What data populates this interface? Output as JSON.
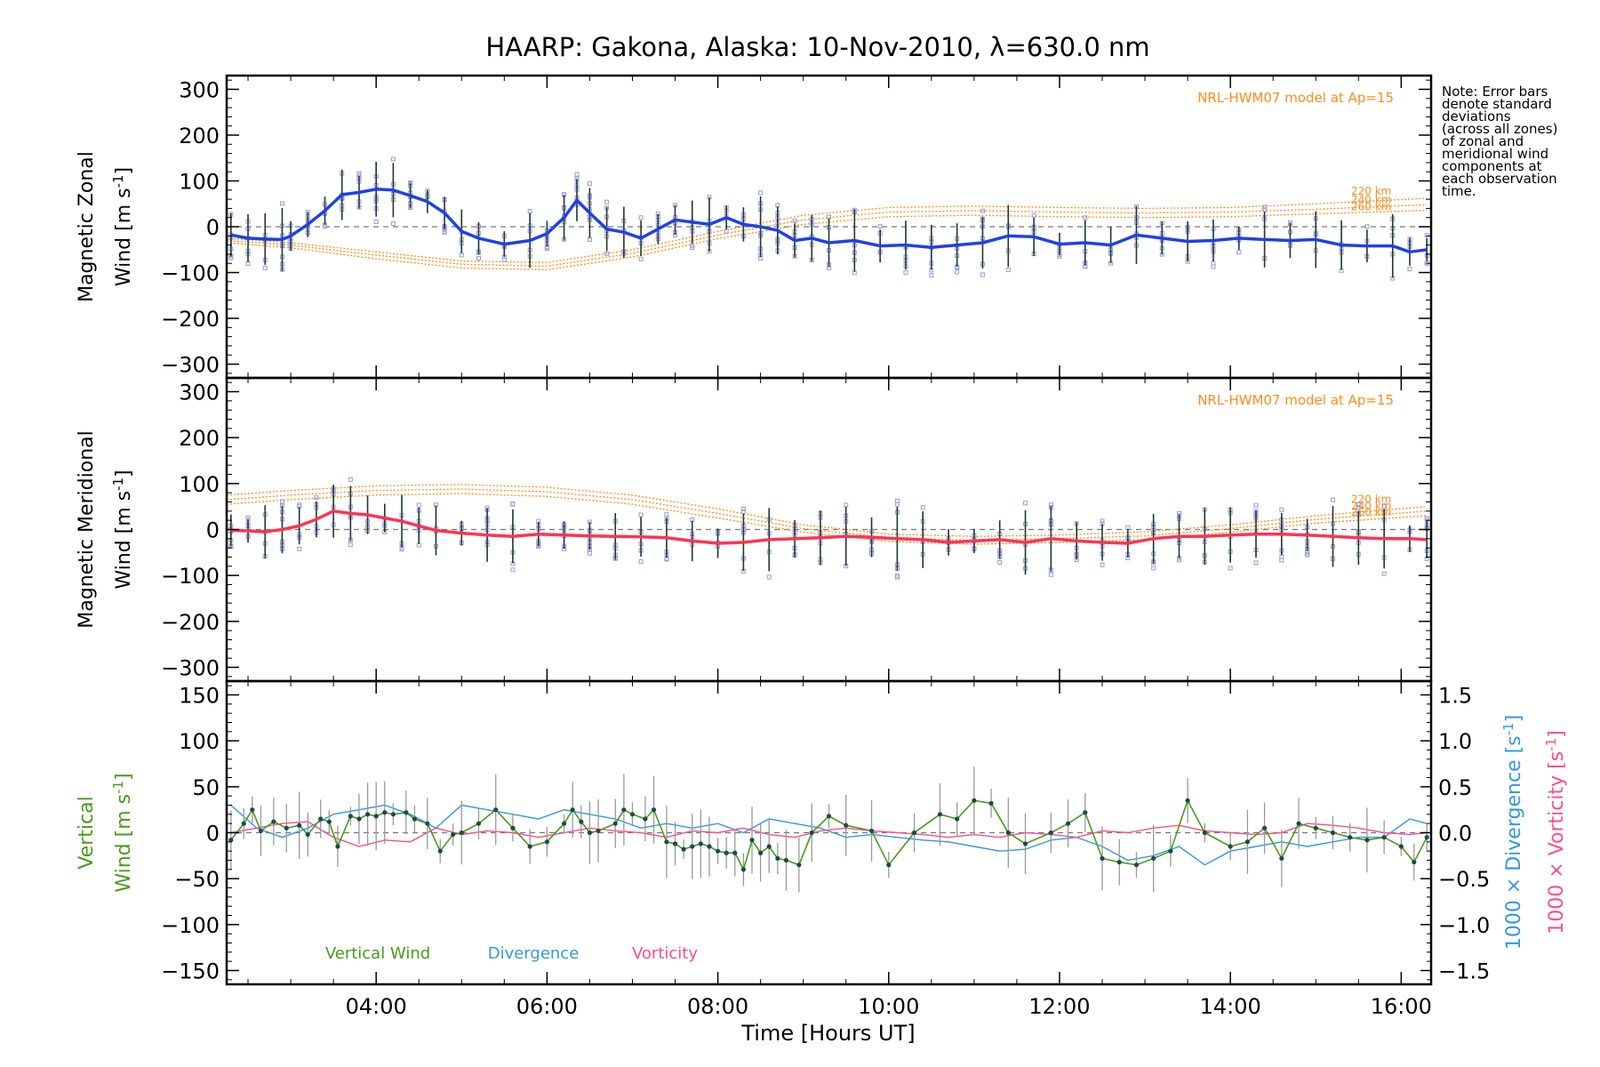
{
  "title": "HAARP: Gakona,  Alaska: 10-Nov-2010, λ=630.0 nm",
  "note": [
    "Note: Error bars",
    "denote standard",
    "deviations",
    "(across all zones)",
    "of zonal and",
    "meridional wind",
    "components at",
    "each observation",
    "time."
  ],
  "xlabel": "Time [Hours UT]",
  "colors": {
    "zonal": "#2040e8",
    "meridional": "#ff3355",
    "vertical": "#4a9a1c",
    "divergence": "#3399dd",
    "vorticity": "#ff4d8a",
    "model": "#ff8c1a",
    "zone_points": "#9999dd",
    "error_bar": "#1a3a2a"
  },
  "chart_data": [
    {
      "type": "line",
      "panel": "zonal",
      "ylabel_line1": "Magnetic Zonal",
      "ylabel_line2_prefix": "Wind [m s",
      "ylabel_sup": "-1",
      "ylabel_suffix": "]",
      "ylim": [
        -330,
        330
      ],
      "yticks": [
        300,
        200,
        100,
        0,
        -100,
        -200,
        -300
      ],
      "xlim": [
        2.25,
        16.35
      ],
      "xticks": [
        4,
        6,
        8,
        10,
        12,
        14,
        16
      ],
      "xticklabels": [
        "04:00",
        "06:00",
        "08:00",
        "10:00",
        "12:00",
        "14:00",
        "16:00"
      ],
      "model_label": "NRL-HWM07 model at Ap=15",
      "model_altitudes": [
        "220 km",
        "240 km",
        "260 km"
      ],
      "series": [
        {
          "x": [
            2.3,
            2.5,
            2.7,
            2.9,
            3.0,
            3.2,
            3.4,
            3.6,
            3.8,
            4.0,
            4.2,
            4.4,
            4.6,
            4.8,
            5.0,
            5.2,
            5.5,
            5.8,
            6.0,
            6.2,
            6.35,
            6.5,
            6.7,
            6.9,
            7.1,
            7.3,
            7.5,
            7.7,
            7.9,
            8.1,
            8.3,
            8.5,
            8.7,
            8.9,
            9.1,
            9.3,
            9.6,
            9.9,
            10.2,
            10.5,
            10.8,
            11.1,
            11.4,
            11.7,
            12.0,
            12.3,
            12.6,
            12.9,
            13.2,
            13.5,
            13.8,
            14.1,
            14.4,
            14.7,
            15.0,
            15.3,
            15.6,
            15.9,
            16.1,
            16.3
          ],
          "values": [
            -18,
            -25,
            -27,
            -28,
            -20,
            5,
            35,
            70,
            75,
            82,
            80,
            68,
            55,
            30,
            -10,
            -25,
            -38,
            -30,
            -15,
            20,
            58,
            30,
            -5,
            -12,
            -25,
            -5,
            15,
            10,
            5,
            20,
            5,
            0,
            -8,
            -30,
            -25,
            -35,
            -30,
            -42,
            -40,
            -45,
            -40,
            -35,
            -20,
            -22,
            -38,
            -35,
            -40,
            -18,
            -25,
            -32,
            -30,
            -25,
            -28,
            -30,
            -28,
            -40,
            -42,
            -42,
            -55,
            -50
          ]
        }
      ],
      "model": {
        "x": [
          2.25,
          3.0,
          4.0,
          5.0,
          6.0,
          7.0,
          8.0,
          9.0,
          10.0,
          11.0,
          12.0,
          13.0,
          14.0,
          15.0,
          16.3
        ],
        "curves": [
          [
            -25,
            -35,
            -55,
            -75,
            -78,
            -50,
            -10,
            25,
            42,
            45,
            42,
            40,
            42,
            50,
            62
          ],
          [
            -30,
            -40,
            -62,
            -82,
            -86,
            -58,
            -18,
            15,
            32,
            35,
            32,
            30,
            32,
            38,
            48
          ],
          [
            -35,
            -46,
            -70,
            -90,
            -94,
            -66,
            -26,
            5,
            22,
            25,
            22,
            20,
            22,
            28,
            36
          ]
        ]
      }
    },
    {
      "type": "line",
      "panel": "meridional",
      "ylabel_line1": "Magnetic Meridional",
      "ylabel_line2_prefix": "Wind [m s",
      "ylabel_sup": "-1",
      "ylabel_suffix": "]",
      "ylim": [
        -330,
        330
      ],
      "yticks": [
        300,
        200,
        100,
        0,
        -100,
        -200,
        -300
      ],
      "xlim": [
        2.25,
        16.35
      ],
      "xticks": [
        4,
        6,
        8,
        10,
        12,
        14,
        16
      ],
      "model_label": "NRL-HWM07 model at Ap=15",
      "model_altitudes": [
        "220 km",
        "240 km",
        "260 km"
      ],
      "series": [
        {
          "x": [
            2.3,
            2.5,
            2.7,
            2.9,
            3.1,
            3.3,
            3.5,
            3.7,
            3.9,
            4.1,
            4.3,
            4.5,
            4.7,
            5.0,
            5.3,
            5.6,
            5.9,
            6.2,
            6.5,
            6.8,
            7.1,
            7.4,
            7.7,
            8.0,
            8.3,
            8.6,
            8.9,
            9.2,
            9.5,
            9.8,
            10.1,
            10.4,
            10.7,
            11.0,
            11.3,
            11.6,
            11.9,
            12.2,
            12.5,
            12.8,
            13.1,
            13.4,
            13.7,
            14.0,
            14.3,
            14.6,
            14.9,
            15.2,
            15.5,
            15.8,
            16.1,
            16.3
          ],
          "values": [
            -2,
            -3,
            -5,
            0,
            8,
            22,
            40,
            35,
            32,
            25,
            18,
            8,
            -2,
            -8,
            -12,
            -15,
            -10,
            -12,
            -14,
            -15,
            -16,
            -18,
            -25,
            -30,
            -28,
            -22,
            -20,
            -18,
            -15,
            -17,
            -20,
            -22,
            -28,
            -25,
            -22,
            -28,
            -20,
            -25,
            -28,
            -30,
            -20,
            -15,
            -15,
            -12,
            -10,
            -10,
            -12,
            -15,
            -18,
            -20,
            -20,
            -22
          ]
        }
      ],
      "model": {
        "x": [
          2.25,
          3.0,
          4.0,
          5.0,
          6.0,
          7.0,
          8.0,
          9.0,
          10.0,
          11.0,
          12.0,
          13.0,
          14.0,
          15.0,
          16.3
        ],
        "curves": [
          [
            75,
            85,
            95,
            98,
            92,
            75,
            45,
            10,
            -10,
            -15,
            -12,
            -5,
            10,
            30,
            50
          ],
          [
            65,
            75,
            85,
            88,
            82,
            65,
            35,
            2,
            -18,
            -24,
            -20,
            -14,
            2,
            22,
            40
          ],
          [
            55,
            65,
            75,
            78,
            72,
            55,
            25,
            -6,
            -26,
            -32,
            -28,
            -22,
            -6,
            14,
            30
          ]
        ]
      }
    },
    {
      "type": "line",
      "panel": "vertical",
      "ylabel_left_line1": "Vertical",
      "ylabel_left_line2_prefix": "Wind [m s",
      "ylabel_sup": "-1",
      "ylabel_suffix": "]",
      "ylabel_right_div_prefix": "1000 × Divergence [s",
      "ylabel_right_vor_prefix": "1000 × Vorticity [s",
      "ylim": [
        -165,
        165
      ],
      "yticks": [
        150,
        100,
        50,
        0,
        -50,
        -100,
        -150
      ],
      "ylim_right": [
        -1.65,
        1.65
      ],
      "yticks_right": [
        1.5,
        1.0,
        0.5,
        0.0,
        -0.5,
        -1.0,
        -1.5
      ],
      "yticklabels_right": [
        "1.5",
        "1.0",
        "0.5",
        "0.0",
        "−0.5",
        "−1.0",
        "−1.5"
      ],
      "xlim": [
        2.25,
        16.35
      ],
      "xticks": [
        4,
        6,
        8,
        10,
        12,
        14,
        16
      ],
      "legend": [
        "Vertical Wind",
        "Divergence",
        "Vorticity"
      ],
      "series": [
        {
          "name": "Vertical Wind",
          "x": [
            2.3,
            2.45,
            2.55,
            2.65,
            2.8,
            2.95,
            3.1,
            3.2,
            3.35,
            3.45,
            3.55,
            3.7,
            3.8,
            3.9,
            4.0,
            4.1,
            4.2,
            4.35,
            4.45,
            4.6,
            4.75,
            4.9,
            5.0,
            5.2,
            5.4,
            5.6,
            5.8,
            6.0,
            6.2,
            6.3,
            6.4,
            6.5,
            6.6,
            6.8,
            6.9,
            7.0,
            7.15,
            7.25,
            7.4,
            7.5,
            7.6,
            7.7,
            7.8,
            7.9,
            8.0,
            8.1,
            8.2,
            8.3,
            8.4,
            8.5,
            8.6,
            8.7,
            8.8,
            8.95,
            9.1,
            9.3,
            9.5,
            9.8,
            10.0,
            10.3,
            10.6,
            10.8,
            11.0,
            11.2,
            11.4,
            11.6,
            11.9,
            12.1,
            12.3,
            12.5,
            12.7,
            12.9,
            13.1,
            13.3,
            13.5,
            13.7,
            14.0,
            14.2,
            14.4,
            14.6,
            14.8,
            15.0,
            15.2,
            15.4,
            15.6,
            15.8,
            16.0,
            16.15,
            16.3
          ],
          "values": [
            -8,
            10,
            25,
            2,
            12,
            5,
            8,
            -2,
            15,
            12,
            -15,
            18,
            15,
            20,
            18,
            22,
            20,
            22,
            15,
            10,
            -20,
            -2,
            0,
            10,
            25,
            5,
            -15,
            -10,
            10,
            25,
            12,
            0,
            2,
            10,
            25,
            20,
            15,
            25,
            -10,
            -12,
            -18,
            -15,
            -12,
            -15,
            -20,
            -22,
            -22,
            -40,
            -8,
            -22,
            -15,
            -28,
            -30,
            -35,
            0,
            18,
            8,
            2,
            -35,
            0,
            20,
            15,
            35,
            32,
            0,
            -12,
            0,
            10,
            22,
            -28,
            -32,
            -35,
            -28,
            -20,
            35,
            0,
            -15,
            -10,
            5,
            -28,
            10,
            5,
            0,
            -5,
            -8,
            -5,
            -15,
            -32,
            -5
          ]
        },
        {
          "name": "Divergence",
          "x": [
            2.3,
            2.6,
            2.9,
            3.2,
            3.5,
            3.8,
            4.1,
            4.4,
            4.7,
            5.0,
            5.3,
            5.6,
            5.9,
            6.2,
            6.5,
            6.8,
            7.1,
            7.4,
            7.7,
            8.0,
            8.3,
            8.6,
            8.9,
            9.2,
            9.5,
            9.8,
            10.1,
            10.4,
            10.7,
            11.0,
            11.3,
            11.6,
            11.9,
            12.2,
            12.5,
            12.8,
            13.1,
            13.4,
            13.7,
            14.0,
            14.3,
            14.6,
            14.9,
            15.2,
            15.5,
            15.8,
            16.1,
            16.3
          ],
          "values": [
            0.3,
            0.05,
            -0.05,
            0.05,
            0.2,
            0.25,
            0.3,
            0.2,
            0.05,
            0.3,
            0.25,
            0.2,
            0.15,
            0.25,
            0.2,
            0.15,
            0.05,
            0.1,
            0.05,
            0.1,
            0.0,
            0.15,
            0.1,
            0.05,
            -0.05,
            -0.02,
            -0.05,
            -0.08,
            -0.1,
            -0.15,
            -0.2,
            -0.18,
            -0.08,
            -0.05,
            -0.15,
            -0.3,
            -0.25,
            -0.15,
            -0.35,
            -0.2,
            -0.15,
            -0.1,
            -0.15,
            -0.1,
            -0.05,
            -0.05,
            0.15,
            0.1
          ]
        },
        {
          "name": "Vorticity",
          "x": [
            2.3,
            2.6,
            2.9,
            3.2,
            3.5,
            3.8,
            4.1,
            4.4,
            4.7,
            5.0,
            5.3,
            5.6,
            5.9,
            6.2,
            6.5,
            6.8,
            7.1,
            7.4,
            7.7,
            8.0,
            8.3,
            8.6,
            8.9,
            9.2,
            9.5,
            9.8,
            10.1,
            10.4,
            10.7,
            11.0,
            11.3,
            11.6,
            11.9,
            12.2,
            12.5,
            12.8,
            13.1,
            13.4,
            13.7,
            14.0,
            14.3,
            14.6,
            14.9,
            15.2,
            15.5,
            15.8,
            16.1,
            16.3
          ],
          "values": [
            0.0,
            0.05,
            0.1,
            0.12,
            -0.05,
            -0.15,
            -0.08,
            -0.1,
            0.05,
            -0.02,
            0.02,
            0.0,
            -0.05,
            0.0,
            0.05,
            0.02,
            0.0,
            -0.05,
            0.02,
            0.0,
            0.05,
            -0.02,
            -0.05,
            0.02,
            0.05,
            0.02,
            0.0,
            -0.02,
            -0.05,
            -0.02,
            -0.05,
            0.0,
            -0.02,
            -0.05,
            0.02,
            0.0,
            0.05,
            0.08,
            0.02,
            0.0,
            -0.02,
            0.0,
            0.1,
            0.08,
            0.05,
            0.0,
            -0.02,
            0.0
          ]
        }
      ]
    }
  ]
}
